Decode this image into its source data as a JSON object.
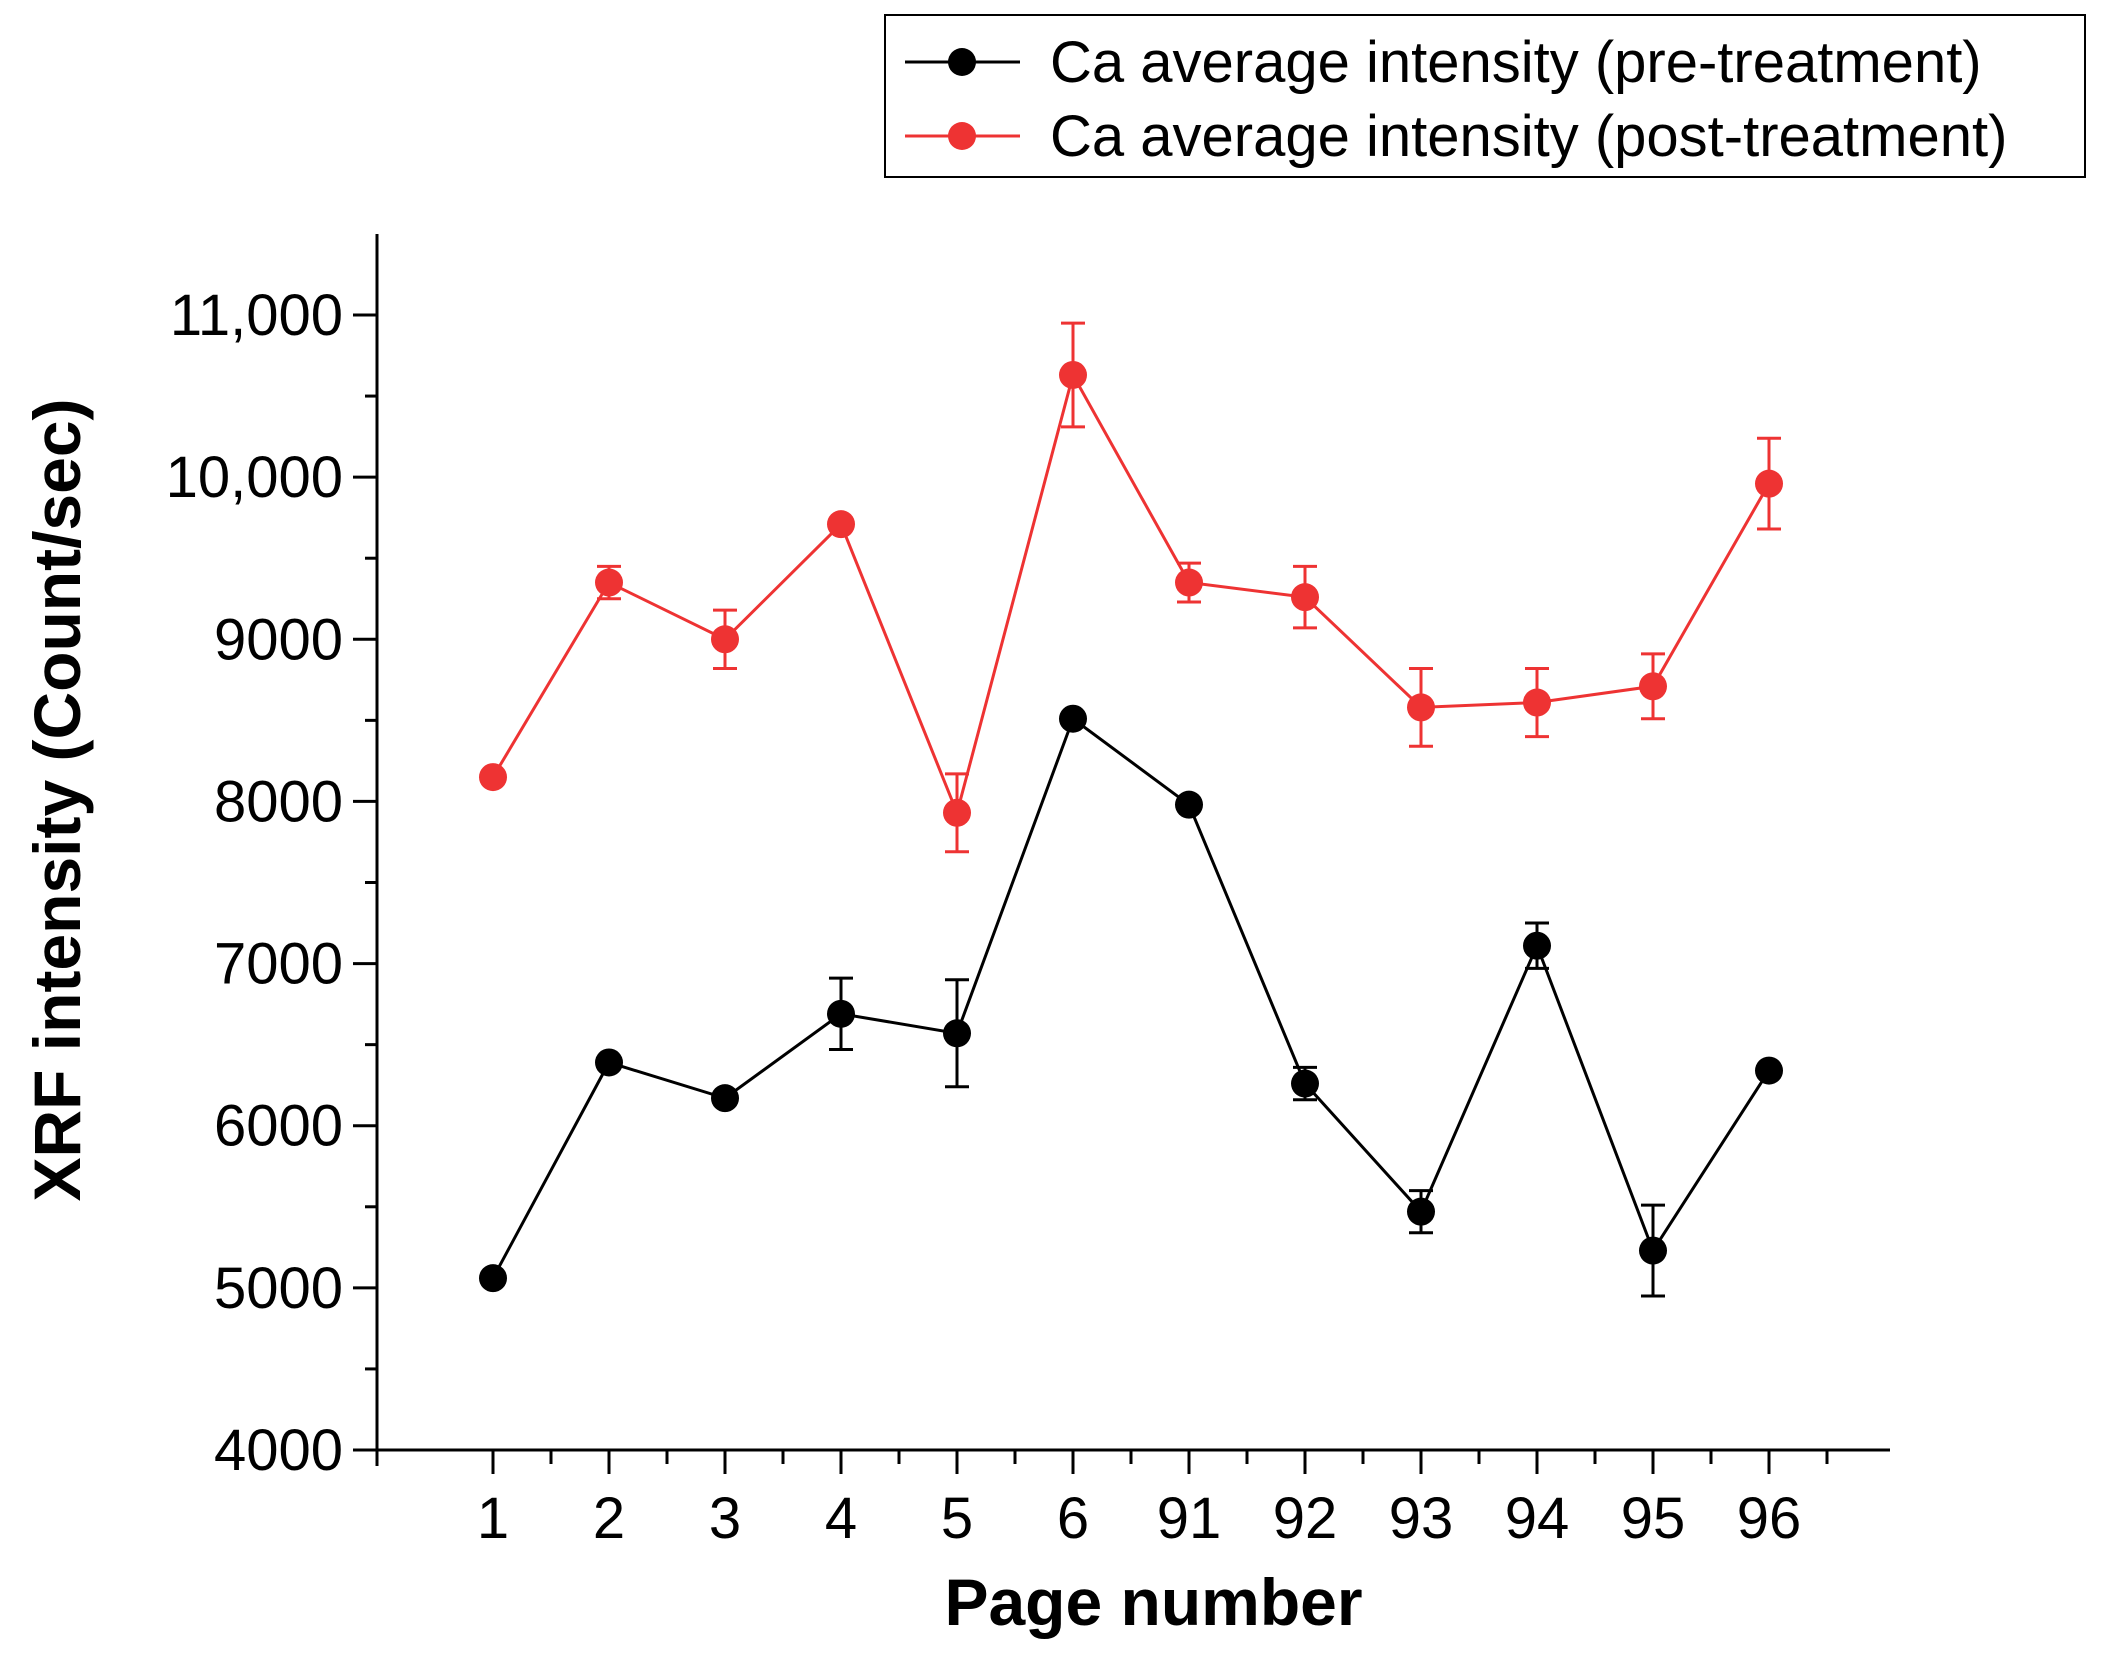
{
  "chart_data": {
    "type": "line",
    "title": "",
    "xlabel": "Page number",
    "ylabel": "XRF intensity (Count/sec)",
    "categories": [
      "1",
      "2",
      "3",
      "4",
      "5",
      "6",
      "91",
      "92",
      "93",
      "94",
      "95",
      "96"
    ],
    "ylim": [
      4000,
      11500
    ],
    "yticks": [
      {
        "value": 4000,
        "label": "4000"
      },
      {
        "value": 5000,
        "label": "5000"
      },
      {
        "value": 6000,
        "label": "6000"
      },
      {
        "value": 7000,
        "label": "7000"
      },
      {
        "value": 8000,
        "label": "8000"
      },
      {
        "value": 9000,
        "label": "9000"
      },
      {
        "value": 10000,
        "label": "10,000"
      },
      {
        "value": 11000,
        "label": "11,000"
      }
    ],
    "grid": false,
    "legend_position": "top-right",
    "series": [
      {
        "name": "Ca average intensity (pre-treatment)",
        "color": "#000000",
        "values": [
          5060,
          6390,
          6170,
          6690,
          6570,
          8510,
          7980,
          6260,
          5470,
          7110,
          5230,
          6340
        ],
        "errors": [
          0,
          0,
          0,
          220,
          330,
          0,
          0,
          100,
          130,
          140,
          280,
          0
        ]
      },
      {
        "name": "Ca average intensity (post-treatment)",
        "color": "#ee3333",
        "values": [
          8150,
          9350,
          9000,
          9710,
          7930,
          10630,
          9350,
          9260,
          8580,
          8610,
          8710,
          9960
        ],
        "errors": [
          0,
          100,
          180,
          0,
          240,
          320,
          120,
          190,
          240,
          210,
          200,
          280
        ]
      }
    ]
  }
}
